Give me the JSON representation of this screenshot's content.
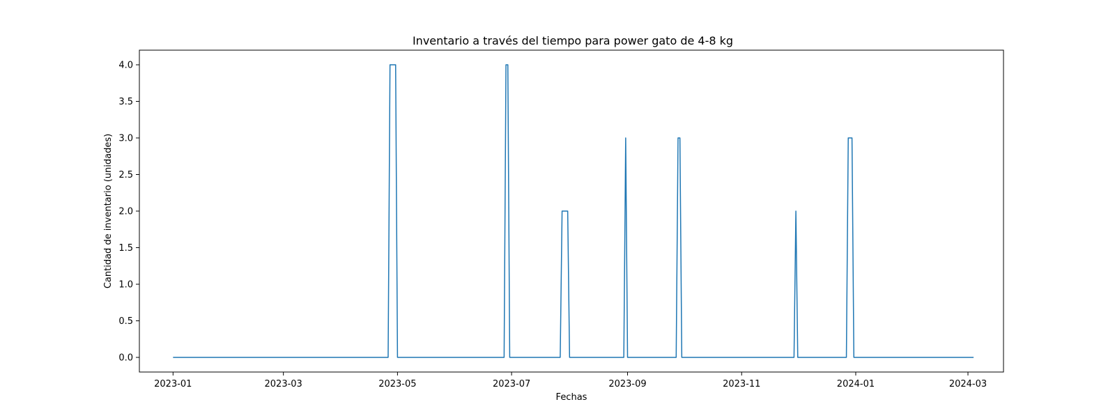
{
  "chart_data": {
    "type": "line",
    "title": "Inventario a través del tiempo para power gato de 4-8 kg",
    "xlabel": "Fechas",
    "ylabel": "Cantidad de inventario (unidades)",
    "x_ticks": [
      "2023-01",
      "2023-03",
      "2023-05",
      "2023-07",
      "2023-09",
      "2023-11",
      "2024-01",
      "2024-03"
    ],
    "y_ticks": [
      "0.0",
      "0.5",
      "1.0",
      "1.5",
      "2.0",
      "2.5",
      "3.0",
      "3.5",
      "4.0"
    ],
    "xlim": [
      "2022-12-14",
      "2024-03-20"
    ],
    "ylim": [
      -0.2,
      4.2
    ],
    "grid": false,
    "legend": "none",
    "line_color": "#1f77b4",
    "series": [
      {
        "x": [
          "2023-01-01",
          "2023-04-26",
          "2023-04-27",
          "2023-04-30",
          "2023-05-01",
          "2023-06-27",
          "2023-06-28",
          "2023-06-29",
          "2023-06-30",
          "2023-07-27",
          "2023-07-28",
          "2023-07-31",
          "2023-08-01",
          "2023-08-30",
          "2023-08-31",
          "2023-09-01",
          "2023-09-27",
          "2023-09-28",
          "2023-09-29",
          "2023-09-30",
          "2023-11-29",
          "2023-11-30",
          "2023-12-01",
          "2023-12-27",
          "2023-12-28",
          "2023-12-30",
          "2023-12-31",
          "2024-03-04"
        ],
        "y": [
          0,
          0,
          4,
          4,
          0,
          0,
          4,
          4,
          0,
          0,
          2,
          2,
          0,
          0,
          3,
          0,
          0,
          3,
          3,
          0,
          0,
          2,
          0,
          0,
          3,
          3,
          0,
          0
        ]
      }
    ]
  }
}
